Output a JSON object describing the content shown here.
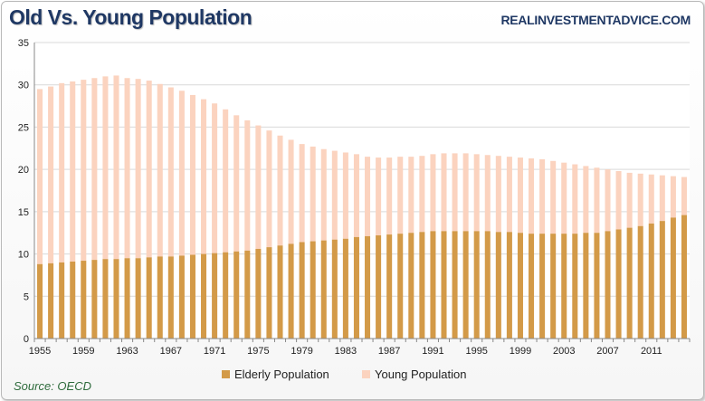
{
  "header": {
    "title": "Old Vs. Young Population",
    "site": "REALINVESTMENTADVICE.COM"
  },
  "footer": {
    "source": "Source: OECD"
  },
  "chart_data": {
    "type": "bar",
    "stacked": true,
    "title": "Old Vs. Young Population",
    "xlabel": "",
    "ylabel": "",
    "ylim": [
      0,
      35
    ],
    "yticks": [
      0,
      5,
      10,
      15,
      20,
      25,
      30,
      35
    ],
    "grid": "horizontal",
    "legend_position": "bottom",
    "categories": [
      1955,
      1956,
      1957,
      1958,
      1959,
      1960,
      1961,
      1962,
      1963,
      1964,
      1965,
      1966,
      1967,
      1968,
      1969,
      1970,
      1971,
      1972,
      1973,
      1974,
      1975,
      1976,
      1977,
      1978,
      1979,
      1980,
      1981,
      1982,
      1983,
      1984,
      1985,
      1986,
      1987,
      1988,
      1989,
      1990,
      1991,
      1992,
      1993,
      1994,
      1995,
      1996,
      1997,
      1998,
      1999,
      2000,
      2001,
      2002,
      2003,
      2004,
      2005,
      2006,
      2007,
      2008,
      2009,
      2010,
      2011,
      2012,
      2013,
      2014
    ],
    "xtick_labels": [
      "1955",
      "1959",
      "1963",
      "1967",
      "1971",
      "1975",
      "1979",
      "1983",
      "1987",
      "1991",
      "1995",
      "1999",
      "2003",
      "2007",
      "2011"
    ],
    "series": [
      {
        "name": "Elderly Population",
        "color": "#d39a48",
        "values": [
          8.8,
          8.9,
          9.0,
          9.1,
          9.2,
          9.3,
          9.4,
          9.4,
          9.5,
          9.5,
          9.6,
          9.7,
          9.7,
          9.8,
          9.9,
          10.0,
          10.1,
          10.2,
          10.3,
          10.4,
          10.6,
          10.8,
          11.0,
          11.2,
          11.4,
          11.5,
          11.6,
          11.7,
          11.8,
          12.0,
          12.1,
          12.2,
          12.3,
          12.4,
          12.5,
          12.6,
          12.7,
          12.7,
          12.7,
          12.7,
          12.7,
          12.7,
          12.6,
          12.6,
          12.5,
          12.4,
          12.4,
          12.4,
          12.4,
          12.4,
          12.5,
          12.5,
          12.7,
          12.9,
          13.1,
          13.3,
          13.6,
          13.9,
          14.3,
          14.6
        ]
      },
      {
        "name": "Young Population",
        "color": "#fbd3bf",
        "values": [
          20.7,
          20.9,
          21.2,
          21.3,
          21.4,
          21.5,
          21.6,
          21.7,
          21.3,
          21.2,
          20.9,
          20.4,
          20.0,
          19.5,
          18.9,
          18.3,
          17.7,
          16.9,
          16.1,
          15.4,
          14.6,
          13.8,
          13.0,
          12.3,
          11.6,
          11.2,
          10.8,
          10.5,
          10.2,
          9.8,
          9.4,
          9.2,
          9.1,
          9.1,
          9.0,
          9.0,
          9.1,
          9.2,
          9.2,
          9.2,
          9.1,
          9.0,
          9.0,
          8.9,
          8.9,
          8.9,
          8.8,
          8.6,
          8.4,
          8.2,
          7.9,
          7.7,
          7.3,
          6.9,
          6.5,
          6.2,
          5.8,
          5.4,
          4.9,
          4.5
        ]
      }
    ]
  }
}
